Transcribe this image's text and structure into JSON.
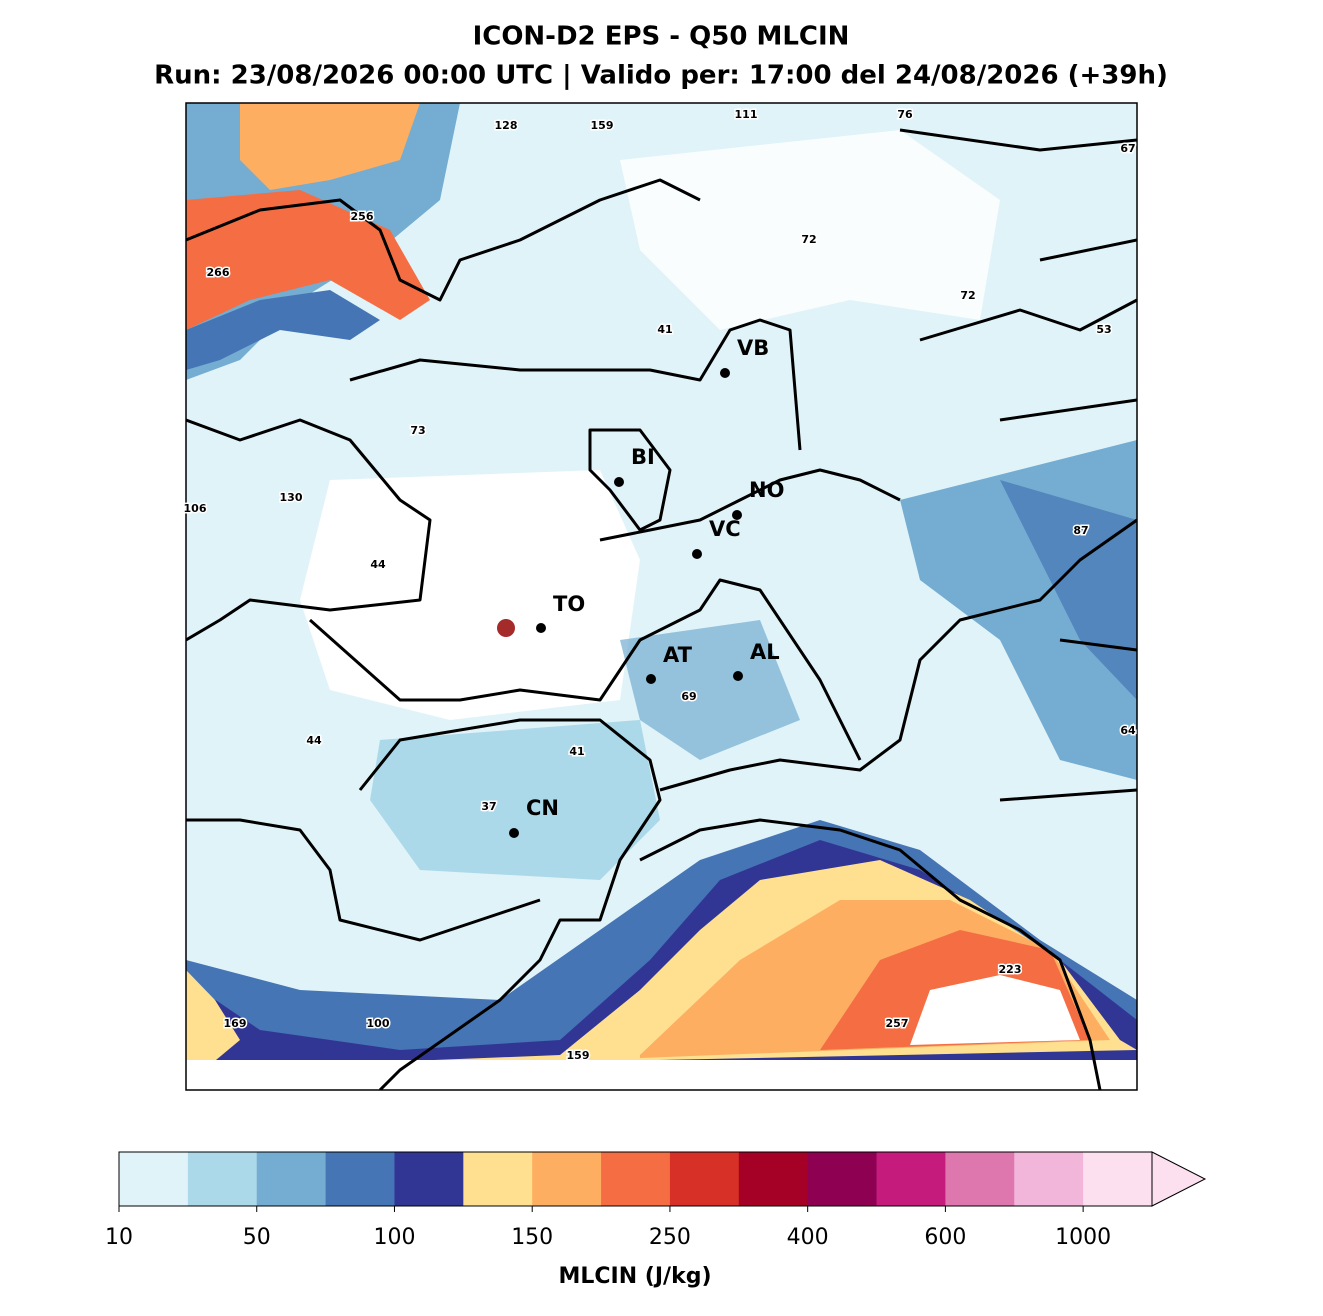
{
  "title": "ICON-D2 EPS - Q50 MLCIN",
  "subtitle": "Run: 23/08/2026 00:00 UTC | Valido per: 17:00 del 24/08/2026 (+39h)",
  "cities": [
    "VB",
    "BI",
    "NO",
    "VC",
    "TO",
    "AT",
    "AL",
    "CN"
  ],
  "map_values": [
    128,
    159,
    111,
    76,
    67,
    256,
    72,
    266,
    72,
    41,
    53,
    73,
    130,
    106,
    87,
    44,
    69,
    64,
    44,
    41,
    37,
    100,
    169,
    159,
    257,
    223
  ],
  "colorbar": {
    "label": "MLCIN (J/kg)",
    "colors": [
      "#e0f3f8",
      "#abd9e9",
      "#74add1",
      "#4575b4",
      "#313695",
      "#fee090",
      "#fdae61",
      "#f46d43",
      "#d73027",
      "#a50026",
      "#8e0152",
      "#c51b7d",
      "#de77ae",
      "#f1b6da",
      "#fde0ef"
    ],
    "ticks": [
      10,
      50,
      100,
      150,
      250,
      400,
      600,
      1000
    ]
  }
}
